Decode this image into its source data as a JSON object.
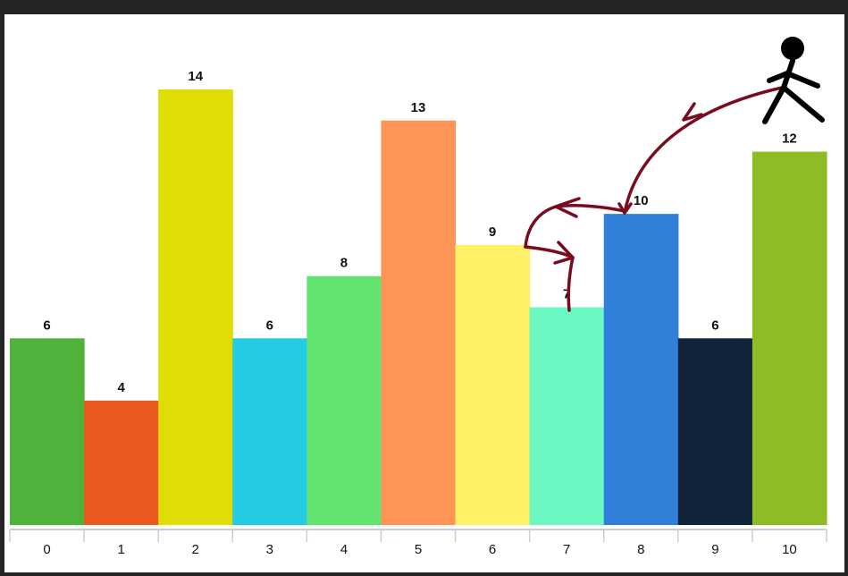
{
  "chart_data": {
    "type": "bar",
    "categories": [
      "0",
      "1",
      "2",
      "3",
      "4",
      "5",
      "6",
      "7",
      "8",
      "9",
      "10"
    ],
    "values": [
      6,
      4,
      14,
      6,
      8,
      13,
      9,
      7,
      10,
      6,
      12
    ],
    "value_labels": [
      "6",
      "4",
      "14",
      "6",
      "8",
      "13",
      "9",
      "7",
      "10",
      "6",
      "12"
    ],
    "colors": [
      "#4fb23a",
      "#ea5a1e",
      "#dfdd03",
      "#23cbe3",
      "#63e370",
      "#fe9556",
      "#fff066",
      "#6bf8c2",
      "#307fd9",
      "#102339",
      "#8fbb27"
    ],
    "title": "",
    "xlabel": "",
    "ylabel": "",
    "ylim": [
      0,
      15
    ],
    "grid": false,
    "legend": "none",
    "annotation": {
      "figure": "stick-figure-icon",
      "arrow_color": "#7a0a1e",
      "path_through_bars": [
        10,
        8,
        6,
        7
      ]
    }
  }
}
